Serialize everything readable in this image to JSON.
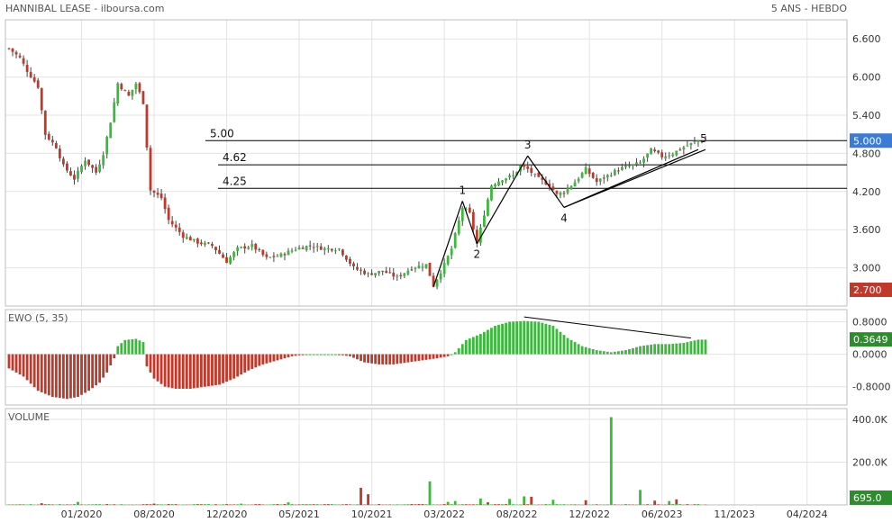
{
  "header": {
    "title": "HANNIBAL LEASE - ilboursa.com",
    "period": "5 ANS - HEBDO"
  },
  "colors": {
    "up": "#3cb93c",
    "down": "#c0392b",
    "current_badge": "#3a7bd5",
    "low_badge": "#c0392b",
    "ewo_badge": "#2e8b2e",
    "volume_badge": "#2e8b2e",
    "line": "#000000"
  },
  "chart_data": [
    {
      "name": "price",
      "type": "candlestick",
      "ylim": [
        2.4,
        6.9
      ],
      "y_ticks": [
        "6.600",
        "6.000",
        "5.400",
        "4.800",
        "4.200",
        "3.600",
        "3.000"
      ],
      "y_tick_values": [
        6.6,
        6.0,
        5.4,
        4.8,
        4.2,
        3.6,
        3.0
      ],
      "current_value": "5.000",
      "low_value": "2.700",
      "levels": [
        {
          "label": "5.00",
          "value": 5.0
        },
        {
          "label": "4.62",
          "value": 4.62
        },
        {
          "label": "4.25",
          "value": 4.25
        }
      ],
      "waves": [
        {
          "label": "1",
          "week": 125,
          "value": 4.05
        },
        {
          "label": "2",
          "week": 129,
          "value": 3.38
        },
        {
          "label": "3",
          "week": 143,
          "value": 4.76
        },
        {
          "label": "4",
          "week": 153,
          "value": 3.95
        },
        {
          "label": "5",
          "week": 190,
          "value": 4.86
        }
      ],
      "wave_start": {
        "week": 117,
        "value": 2.7
      },
      "trendline": [
        {
          "week": 153,
          "value": 3.95
        },
        {
          "week": 192,
          "value": 4.86
        }
      ],
      "anchors": [
        [
          0,
          6.45
        ],
        [
          3,
          6.3
        ],
        [
          5,
          6.1
        ],
        [
          8,
          5.85
        ],
        [
          10,
          5.1
        ],
        [
          13,
          4.9
        ],
        [
          15,
          4.6
        ],
        [
          18,
          4.4
        ],
        [
          21,
          4.7
        ],
        [
          24,
          4.5
        ],
        [
          26,
          4.8
        ],
        [
          28,
          5.3
        ],
        [
          30,
          5.9
        ],
        [
          33,
          5.7
        ],
        [
          35,
          5.9
        ],
        [
          37,
          5.6
        ],
        [
          39,
          4.22
        ],
        [
          42,
          4.1
        ],
        [
          44,
          3.75
        ],
        [
          48,
          3.5
        ],
        [
          52,
          3.4
        ],
        [
          56,
          3.35
        ],
        [
          60,
          3.1
        ],
        [
          63,
          3.3
        ],
        [
          67,
          3.35
        ],
        [
          71,
          3.15
        ],
        [
          75,
          3.2
        ],
        [
          79,
          3.3
        ],
        [
          83,
          3.35
        ],
        [
          87,
          3.3
        ],
        [
          91,
          3.3
        ],
        [
          95,
          3.0
        ],
        [
          99,
          2.9
        ],
        [
          103,
          2.95
        ],
        [
          107,
          2.85
        ],
        [
          111,
          3.0
        ],
        [
          115,
          3.05
        ],
        [
          117,
          2.72
        ],
        [
          120,
          3.05
        ],
        [
          122,
          3.3
        ],
        [
          125,
          3.95
        ],
        [
          127,
          3.85
        ],
        [
          129,
          3.38
        ],
        [
          131,
          3.85
        ],
        [
          133,
          4.3
        ],
        [
          136,
          4.4
        ],
        [
          139,
          4.45
        ],
        [
          141,
          4.6
        ],
        [
          143,
          4.55
        ],
        [
          146,
          4.4
        ],
        [
          149,
          4.3
        ],
        [
          151,
          4.15
        ],
        [
          153,
          4.2
        ],
        [
          156,
          4.35
        ],
        [
          159,
          4.55
        ],
        [
          162,
          4.35
        ],
        [
          165,
          4.45
        ],
        [
          168,
          4.55
        ],
        [
          171,
          4.6
        ],
        [
          174,
          4.65
        ],
        [
          177,
          4.85
        ],
        [
          180,
          4.75
        ],
        [
          183,
          4.8
        ],
        [
          186,
          4.9
        ],
        [
          188,
          4.95
        ],
        [
          190,
          5.0
        ]
      ]
    },
    {
      "name": "ewo",
      "type": "bar",
      "title": "EWO (5, 35)",
      "ylim": [
        -1.25,
        1.1
      ],
      "y_ticks": [
        "0.8000",
        "0.0000",
        "-0.8000"
      ],
      "y_tick_values": [
        0.8,
        0.0,
        -0.8
      ],
      "current_value": "0.3649",
      "trendline": [
        {
          "week": 142,
          "value": 0.92
        },
        {
          "week": 188,
          "value": 0.4
        }
      ],
      "anchors": [
        [
          0,
          -0.35
        ],
        [
          4,
          -0.55
        ],
        [
          8,
          -0.9
        ],
        [
          12,
          -1.05
        ],
        [
          16,
          -1.1
        ],
        [
          19,
          -1.05
        ],
        [
          22,
          -0.9
        ],
        [
          25,
          -0.7
        ],
        [
          27,
          -0.45
        ],
        [
          29,
          -0.1
        ],
        [
          30,
          0.2
        ],
        [
          32,
          0.35
        ],
        [
          35,
          0.38
        ],
        [
          37,
          0.3
        ],
        [
          38,
          -0.3
        ],
        [
          40,
          -0.6
        ],
        [
          43,
          -0.8
        ],
        [
          46,
          -0.85
        ],
        [
          50,
          -0.85
        ],
        [
          54,
          -0.8
        ],
        [
          58,
          -0.75
        ],
        [
          62,
          -0.6
        ],
        [
          66,
          -0.4
        ],
        [
          70,
          -0.25
        ],
        [
          74,
          -0.15
        ],
        [
          78,
          -0.05
        ],
        [
          82,
          0.0
        ],
        [
          86,
          0.0
        ],
        [
          90,
          0.0
        ],
        [
          94,
          -0.05
        ],
        [
          98,
          -0.2
        ],
        [
          102,
          -0.25
        ],
        [
          106,
          -0.25
        ],
        [
          110,
          -0.2
        ],
        [
          114,
          -0.15
        ],
        [
          118,
          -0.1
        ],
        [
          121,
          -0.05
        ],
        [
          123,
          0.05
        ],
        [
          126,
          0.35
        ],
        [
          130,
          0.5
        ],
        [
          134,
          0.7
        ],
        [
          138,
          0.8
        ],
        [
          142,
          0.82
        ],
        [
          146,
          0.8
        ],
        [
          150,
          0.7
        ],
        [
          154,
          0.4
        ],
        [
          158,
          0.2
        ],
        [
          162,
          0.1
        ],
        [
          166,
          0.05
        ],
        [
          170,
          0.1
        ],
        [
          174,
          0.2
        ],
        [
          178,
          0.25
        ],
        [
          182,
          0.25
        ],
        [
          186,
          0.28
        ],
        [
          190,
          0.36
        ]
      ]
    },
    {
      "name": "volume",
      "type": "bar",
      "title": "VOLUME",
      "ylim": [
        0,
        450
      ],
      "y_ticks": [
        "400.0K",
        "200.0K"
      ],
      "y_tick_values": [
        400,
        200
      ],
      "current_value": "695.0",
      "spikes": [
        [
          9,
          8,
          0
        ],
        [
          19,
          14,
          1
        ],
        [
          40,
          6,
          0
        ],
        [
          52,
          4,
          0
        ],
        [
          64,
          6,
          1
        ],
        [
          77,
          12,
          1
        ],
        [
          97,
          80,
          0
        ],
        [
          99,
          50,
          0
        ],
        [
          116,
          110,
          1
        ],
        [
          121,
          14,
          1
        ],
        [
          123,
          18,
          1
        ],
        [
          130,
          30,
          1
        ],
        [
          132,
          12,
          0
        ],
        [
          138,
          28,
          1
        ],
        [
          142,
          40,
          1
        ],
        [
          144,
          38,
          0
        ],
        [
          150,
          24,
          1
        ],
        [
          159,
          22,
          0
        ],
        [
          166,
          410,
          1
        ],
        [
          174,
          70,
          1
        ],
        [
          178,
          20,
          0
        ],
        [
          182,
          18,
          1
        ],
        [
          184,
          26,
          0
        ]
      ]
    }
  ],
  "x_axis": {
    "weeks": 192,
    "labels": [
      {
        "text": "01/2020",
        "week": 20
      },
      {
        "text": "08/2020",
        "week": 40
      },
      {
        "text": "12/2020",
        "week": 60
      },
      {
        "text": "05/2021",
        "week": 80
      },
      {
        "text": "10/2021",
        "week": 100
      },
      {
        "text": "03/2022",
        "week": 120
      },
      {
        "text": "08/2022",
        "week": 140
      },
      {
        "text": "12/2022",
        "week": 160
      },
      {
        "text": "06/2023",
        "week": 180
      },
      {
        "text": "11/2023",
        "week": 200
      },
      {
        "text": "04/2024",
        "week": 220
      }
    ]
  }
}
